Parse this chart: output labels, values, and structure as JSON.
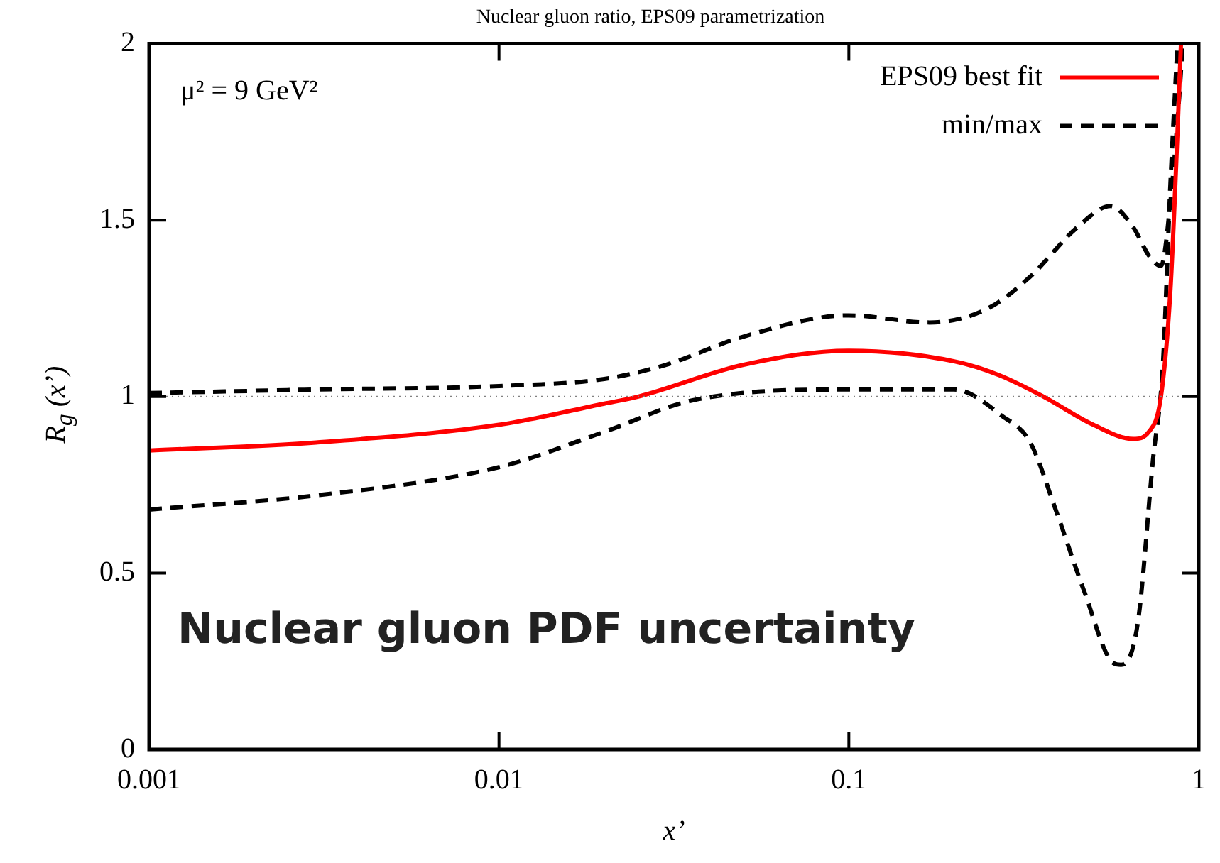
{
  "chart_data": {
    "type": "line",
    "title": "Nuclear gluon ratio, EPS09 parametrization",
    "xlabel": "x’",
    "ylabel": "R$_{g}$ (x’)",
    "log": "x",
    "xlim": [
      0.001,
      1
    ],
    "xticks": [
      0.001,
      0.01,
      0.1,
      1
    ],
    "ylim": [
      0,
      2
    ],
    "yticks": [
      0,
      0.5,
      1,
      1.5,
      2
    ],
    "grid": false,
    "legend": "top right",
    "marker": "none",
    "ref_lines": [
      {
        "axis": "y",
        "value": 1,
        "label": null,
        "color": "#808080",
        "line_style": "dotted"
      }
    ],
    "annotations": [
      "μ² = 9 GeV²",
      "Nuclear gluon PDF uncertainty"
    ],
    "series": [
      {
        "name": "EPS09 best fit",
        "color": "#ff0000",
        "line_style": "solid",
        "x": [
          0.001,
          0.003,
          0.01,
          0.02,
          0.025,
          0.05,
          0.1,
          0.2,
          0.27,
          0.36,
          0.5,
          0.65,
          0.72,
          0.78,
          0.83,
          0.87,
          0.89
        ],
        "values": [
          0.847,
          0.87,
          0.92,
          0.98,
          1.0,
          1.09,
          1.13,
          1.1,
          1.06,
          1.0,
          0.92,
          0.88,
          0.9,
          1.0,
          1.3,
          1.75,
          2.0
        ]
      },
      {
        "name": "min/max",
        "color": "#000000",
        "line_style": "dashed",
        "x": [
          0.001,
          0.003,
          0.01,
          0.02,
          0.03,
          0.05,
          0.1,
          0.17,
          0.25,
          0.33,
          0.45,
          0.56,
          0.65,
          0.72,
          0.78,
          0.83,
          0.88,
          0.9
        ],
        "values": [
          1.01,
          1.02,
          1.03,
          1.05,
          1.09,
          1.17,
          1.23,
          1.21,
          1.25,
          1.34,
          1.48,
          1.54,
          1.48,
          1.4,
          1.37,
          1.55,
          1.85,
          2.0
        ]
      },
      {
        "color": "#000000",
        "line_style": "dashed",
        "x": [
          0.001,
          0.003,
          0.01,
          0.02,
          0.036,
          0.1,
          0.2,
          0.22,
          0.27,
          0.33,
          0.39,
          0.47,
          0.57,
          0.6,
          0.67,
          0.74,
          0.79,
          0.83,
          0.87
        ],
        "values": [
          0.68,
          0.72,
          0.8,
          0.9,
          0.99,
          1.02,
          1.02,
          1.01,
          0.95,
          0.87,
          0.68,
          0.45,
          0.245,
          0.24,
          0.36,
          0.82,
          1.09,
          1.6,
          2.0
        ]
      }
    ]
  }
}
